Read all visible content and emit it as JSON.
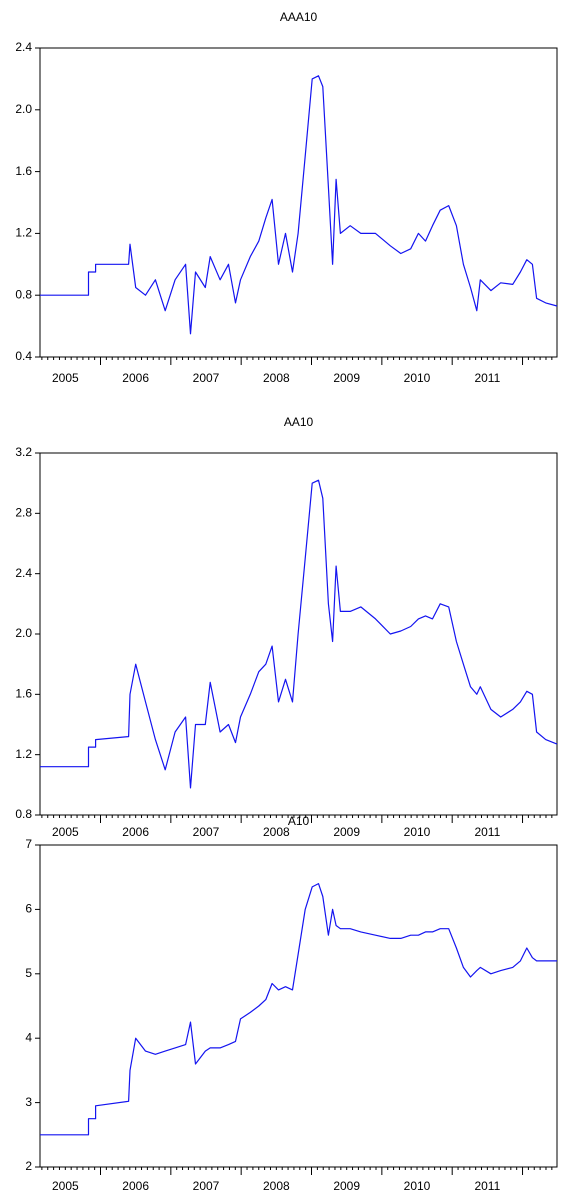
{
  "chart_data": [
    {
      "type": "line",
      "title": "AAA10",
      "color": "#1414f0",
      "x": [
        2005.14,
        2005.83,
        2005.83,
        2005.93,
        2005.93,
        2006.4,
        2006.42,
        2006.5,
        2006.64,
        2006.78,
        2006.92,
        2007.06,
        2007.21,
        2007.28,
        2007.35,
        2007.49,
        2007.56,
        2007.7,
        2007.82,
        2007.92,
        2007.99,
        2008.13,
        2008.25,
        2008.35,
        2008.44,
        2008.53,
        2008.63,
        2008.73,
        2008.81,
        2008.91,
        2009.01,
        2009.1,
        2009.16,
        2009.24,
        2009.3,
        2009.35,
        2009.41,
        2009.55,
        2009.7,
        2009.91,
        2010.12,
        2010.27,
        2010.41,
        2010.52,
        2010.62,
        2010.72,
        2010.83,
        2010.95,
        2011.06,
        2011.16,
        2011.26,
        2011.35,
        2011.4,
        2011.55,
        2011.69,
        2011.86,
        2011.97,
        2012.06,
        2012.14,
        2012.2,
        2012.33,
        2012.49
      ],
      "values": [
        0.8,
        0.8,
        0.95,
        0.95,
        1.0,
        1.0,
        1.13,
        0.85,
        0.8,
        0.9,
        0.7,
        0.9,
        1.0,
        0.55,
        0.95,
        0.85,
        1.05,
        0.9,
        1.0,
        0.75,
        0.9,
        1.05,
        1.15,
        1.3,
        1.42,
        1.0,
        1.2,
        0.95,
        1.2,
        1.7,
        2.2,
        2.22,
        2.15,
        1.5,
        1.0,
        1.55,
        1.2,
        1.25,
        1.2,
        1.2,
        1.12,
        1.07,
        1.1,
        1.2,
        1.15,
        1.25,
        1.35,
        1.38,
        1.25,
        1.0,
        0.85,
        0.7,
        0.9,
        0.83,
        0.88,
        0.87,
        0.95,
        1.03,
        1.0,
        0.78,
        0.75,
        0.73
      ],
      "xlim": [
        2005.14,
        2012.49
      ],
      "xticks": [
        {
          "value": 2005.5,
          "label": "2005"
        },
        {
          "value": 2006.5,
          "label": "2006"
        },
        {
          "value": 2007.5,
          "label": "2007"
        },
        {
          "value": 2008.5,
          "label": "2008"
        },
        {
          "value": 2009.5,
          "label": "2009"
        },
        {
          "value": 2010.5,
          "label": "2010"
        },
        {
          "value": 2011.5,
          "label": "2011"
        }
      ],
      "ylim": [
        0.4,
        2.4
      ],
      "yticks": [
        0.4,
        0.8,
        1.2,
        1.6,
        {
          "value": 2,
          "label": "2.0"
        },
        2.4
      ]
    },
    {
      "type": "line",
      "title": "AA10",
      "color": "#1414f0",
      "x": [
        2005.14,
        2005.83,
        2005.83,
        2005.93,
        2005.93,
        2006.4,
        2006.42,
        2006.5,
        2006.64,
        2006.78,
        2006.92,
        2007.06,
        2007.21,
        2007.28,
        2007.35,
        2007.49,
        2007.56,
        2007.7,
        2007.82,
        2007.92,
        2007.99,
        2008.13,
        2008.25,
        2008.35,
        2008.44,
        2008.53,
        2008.63,
        2008.73,
        2008.81,
        2008.91,
        2009.01,
        2009.1,
        2009.16,
        2009.24,
        2009.3,
        2009.35,
        2009.41,
        2009.55,
        2009.7,
        2009.91,
        2010.12,
        2010.27,
        2010.41,
        2010.52,
        2010.62,
        2010.72,
        2010.83,
        2010.95,
        2011.06,
        2011.16,
        2011.26,
        2011.35,
        2011.4,
        2011.55,
        2011.69,
        2011.86,
        2011.97,
        2012.06,
        2012.14,
        2012.2,
        2012.33,
        2012.49
      ],
      "values": [
        1.12,
        1.12,
        1.25,
        1.25,
        1.3,
        1.32,
        1.6,
        1.8,
        1.55,
        1.3,
        1.1,
        1.35,
        1.45,
        0.98,
        1.4,
        1.4,
        1.68,
        1.35,
        1.4,
        1.28,
        1.45,
        1.6,
        1.75,
        1.8,
        1.92,
        1.55,
        1.7,
        1.55,
        2.0,
        2.5,
        3.0,
        3.02,
        2.9,
        2.2,
        1.95,
        2.45,
        2.15,
        2.15,
        2.18,
        2.1,
        2.0,
        2.02,
        2.05,
        2.1,
        2.12,
        2.1,
        2.2,
        2.18,
        1.95,
        1.8,
        1.65,
        1.6,
        1.65,
        1.5,
        1.45,
        1.5,
        1.55,
        1.62,
        1.6,
        1.35,
        1.3,
        1.27
      ],
      "xlim": [
        2005.14,
        2012.49
      ],
      "xticks": [
        {
          "value": 2005.5,
          "label": "2005"
        },
        {
          "value": 2006.5,
          "label": "2006"
        },
        {
          "value": 2007.5,
          "label": "2007"
        },
        {
          "value": 2008.5,
          "label": "2008"
        },
        {
          "value": 2009.5,
          "label": "2009"
        },
        {
          "value": 2010.5,
          "label": "2010"
        },
        {
          "value": 2011.5,
          "label": "2011"
        }
      ],
      "ylim": [
        0.8,
        3.2
      ],
      "yticks": [
        0.8,
        1.2,
        1.6,
        {
          "value": 2,
          "label": "2.0"
        },
        2.4,
        2.8,
        3.2
      ]
    },
    {
      "type": "line",
      "title": "A10",
      "color": "#1414f0",
      "x": [
        2005.14,
        2005.83,
        2005.83,
        2005.93,
        2005.93,
        2006.4,
        2006.42,
        2006.5,
        2006.64,
        2006.78,
        2006.92,
        2007.06,
        2007.21,
        2007.28,
        2007.35,
        2007.49,
        2007.56,
        2007.7,
        2007.82,
        2007.92,
        2007.99,
        2008.13,
        2008.25,
        2008.35,
        2008.44,
        2008.53,
        2008.63,
        2008.73,
        2008.81,
        2008.91,
        2009.01,
        2009.1,
        2009.16,
        2009.24,
        2009.3,
        2009.35,
        2009.41,
        2009.55,
        2009.7,
        2009.91,
        2010.12,
        2010.27,
        2010.41,
        2010.52,
        2010.62,
        2010.72,
        2010.83,
        2010.95,
        2011.06,
        2011.16,
        2011.26,
        2011.35,
        2011.4,
        2011.55,
        2011.69,
        2011.86,
        2011.97,
        2012.06,
        2012.14,
        2012.2,
        2012.33,
        2012.49
      ],
      "values": [
        2.5,
        2.5,
        2.75,
        2.75,
        2.95,
        3.02,
        3.5,
        4.0,
        3.8,
        3.75,
        3.8,
        3.85,
        3.9,
        4.25,
        3.6,
        3.8,
        3.85,
        3.85,
        3.9,
        3.95,
        4.3,
        4.4,
        4.5,
        4.6,
        4.85,
        4.75,
        4.8,
        4.75,
        5.3,
        6.0,
        6.35,
        6.4,
        6.2,
        5.6,
        6.0,
        5.75,
        5.7,
        5.7,
        5.65,
        5.6,
        5.55,
        5.55,
        5.6,
        5.6,
        5.65,
        5.65,
        5.7,
        5.7,
        5.4,
        5.1,
        4.95,
        5.05,
        5.1,
        5.0,
        5.05,
        5.1,
        5.2,
        5.4,
        5.25,
        5.2,
        5.2,
        5.2
      ],
      "xlim": [
        2005.14,
        2012.49
      ],
      "xticks": [
        {
          "value": 2005.5,
          "label": "2005"
        },
        {
          "value": 2006.5,
          "label": "2006"
        },
        {
          "value": 2007.5,
          "label": "2007"
        },
        {
          "value": 2008.5,
          "label": "2008"
        },
        {
          "value": 2009.5,
          "label": "2009"
        },
        {
          "value": 2010.5,
          "label": "2010"
        },
        {
          "value": 2011.5,
          "label": "2011"
        }
      ],
      "ylim": [
        2,
        7
      ],
      "yticks": [
        2,
        3,
        4,
        5,
        6,
        7
      ]
    }
  ]
}
